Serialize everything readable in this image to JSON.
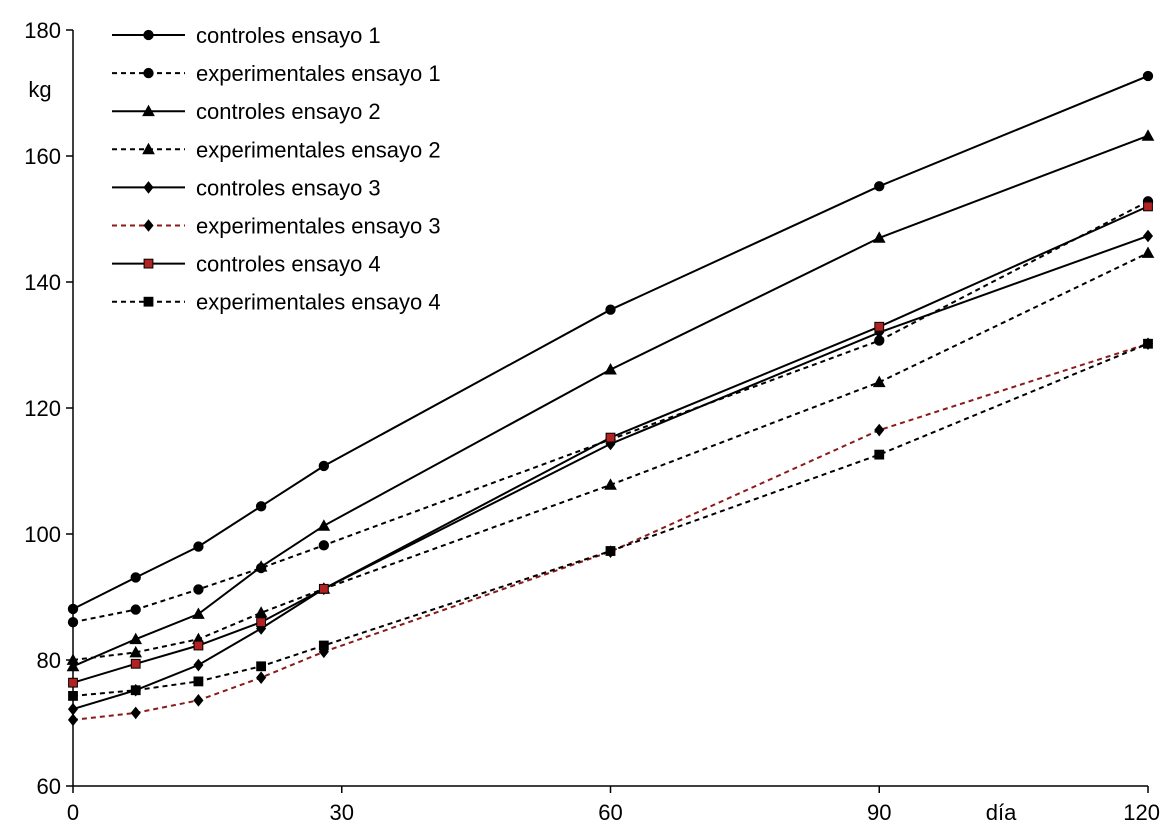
{
  "chart_data": {
    "type": "line",
    "title": "",
    "xlabel": "día",
    "ylabel": "kg",
    "xlim": [
      0,
      120
    ],
    "ylim": [
      60,
      180
    ],
    "xticks": [
      0,
      30,
      60,
      90,
      120
    ],
    "yticks": [
      60,
      80,
      100,
      120,
      140,
      160,
      180
    ],
    "grid": false,
    "legend_position": "top-left",
    "series": [
      {
        "name": "controles ensayo 1",
        "line": "solid",
        "marker": "circle",
        "color": "#000000",
        "x": [
          0,
          7,
          14,
          21,
          28,
          60,
          90,
          120
        ],
        "y": [
          88.1,
          93.1,
          98.0,
          104.4,
          110.8,
          135.6,
          155.2,
          172.7
        ]
      },
      {
        "name": "experimentales ensayo 1",
        "line": "dashed",
        "marker": "circle",
        "color": "#000000",
        "x": [
          0,
          7,
          14,
          21,
          28,
          60,
          90,
          120
        ],
        "y": [
          86.0,
          88.0,
          91.2,
          94.6,
          98.2,
          115.0,
          130.7,
          152.8
        ]
      },
      {
        "name": "controles ensayo 2",
        "line": "solid",
        "marker": "triangle",
        "color": "#000000",
        "x": [
          0,
          7,
          14,
          21,
          28,
          60,
          90,
          120
        ],
        "y": [
          79.0,
          83.3,
          87.3,
          94.8,
          101.3,
          126.1,
          147.0,
          163.2
        ]
      },
      {
        "name": "experimentales ensayo 2",
        "line": "dashed",
        "marker": "triangle",
        "color": "#000000",
        "x": [
          0,
          7,
          14,
          21,
          28,
          60,
          90,
          120
        ],
        "y": [
          80.0,
          81.2,
          83.3,
          87.5,
          91.3,
          107.8,
          124.1,
          144.6
        ]
      },
      {
        "name": "controles ensayo 3",
        "line": "solid",
        "marker": "diamond",
        "color": "#000000",
        "x": [
          0,
          7,
          14,
          21,
          28,
          60,
          90,
          120
        ],
        "y": [
          72.2,
          75.2,
          79.2,
          85.0,
          91.3,
          114.3,
          132.0,
          147.3
        ]
      },
      {
        "name": "experimentales ensayo 3",
        "line": "dashed",
        "marker": "diamond",
        "color": "#8b1a1a",
        "x": [
          0,
          7,
          14,
          21,
          28,
          60,
          90,
          120
        ],
        "y": [
          70.5,
          71.6,
          73.6,
          77.2,
          81.3,
          97.2,
          116.5,
          130.2
        ]
      },
      {
        "name": "controles ensayo 4",
        "line": "solid",
        "marker": "square",
        "color": "#000000",
        "marker_fill": "#b22222",
        "x": [
          0,
          7,
          14,
          21,
          28,
          60,
          90,
          120
        ],
        "y": [
          76.4,
          79.4,
          82.3,
          86.0,
          91.3,
          115.3,
          132.9,
          152.0
        ]
      },
      {
        "name": "experimentales ensayo 4",
        "line": "dashed",
        "marker": "square",
        "color": "#000000",
        "x": [
          0,
          7,
          14,
          21,
          28,
          60,
          90,
          120
        ],
        "y": [
          74.3,
          75.2,
          76.6,
          79.0,
          82.3,
          97.3,
          112.6,
          130.2
        ]
      }
    ]
  }
}
